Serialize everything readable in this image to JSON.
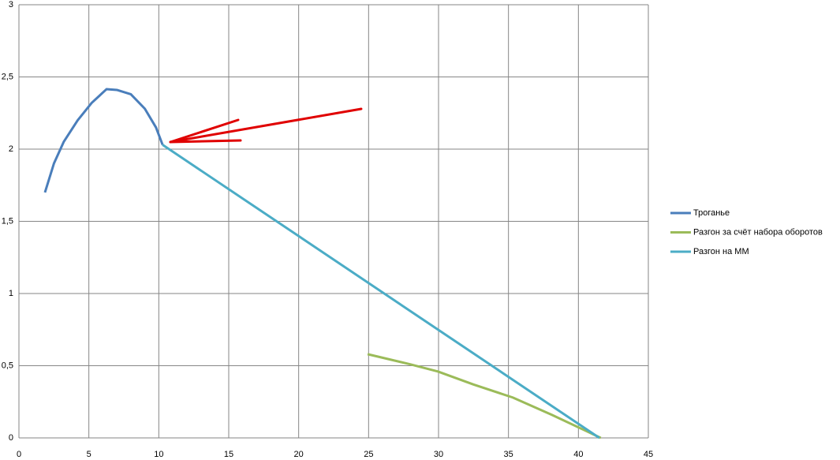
{
  "chart_data": {
    "type": "line",
    "xlim": [
      0,
      45
    ],
    "xticks": [
      0,
      5,
      10,
      15,
      20,
      25,
      30,
      35,
      40,
      45
    ],
    "ylim": [
      0,
      3
    ],
    "yticks": [
      0,
      {
        "value": 0.5,
        "label": "0,5"
      },
      1,
      {
        "value": 1.5,
        "label": "1,5"
      },
      2,
      {
        "value": 2.5,
        "label": "2,5"
      },
      3
    ],
    "grid": true,
    "legend": "right",
    "series": [
      {
        "name": "Троганье",
        "color": "#4a7ebb",
        "x": [
          1.86,
          2.5,
          3.2,
          4.2,
          5.2,
          6.26,
          7.0,
          8.0,
          9.0,
          9.8,
          10.27
        ],
        "values": [
          1.7,
          1.9,
          2.05,
          2.2,
          2.32,
          2.415,
          2.41,
          2.38,
          2.28,
          2.15,
          2.03
        ]
      },
      {
        "name": "Разгон за счёт набора оборотов",
        "color": "#9bbb59",
        "x": [
          24.93,
          27.97,
          29.95,
          32.5,
          35.3,
          38.1,
          40.4,
          41.6
        ],
        "values": [
          0.58,
          0.51,
          0.46,
          0.37,
          0.28,
          0.16,
          0.055,
          0
        ]
      },
      {
        "name": "Разгон на ММ",
        "color": "#4bacc6",
        "x": [
          10.27,
          41.5
        ],
        "values": [
          2.03,
          0
        ]
      }
    ]
  }
}
